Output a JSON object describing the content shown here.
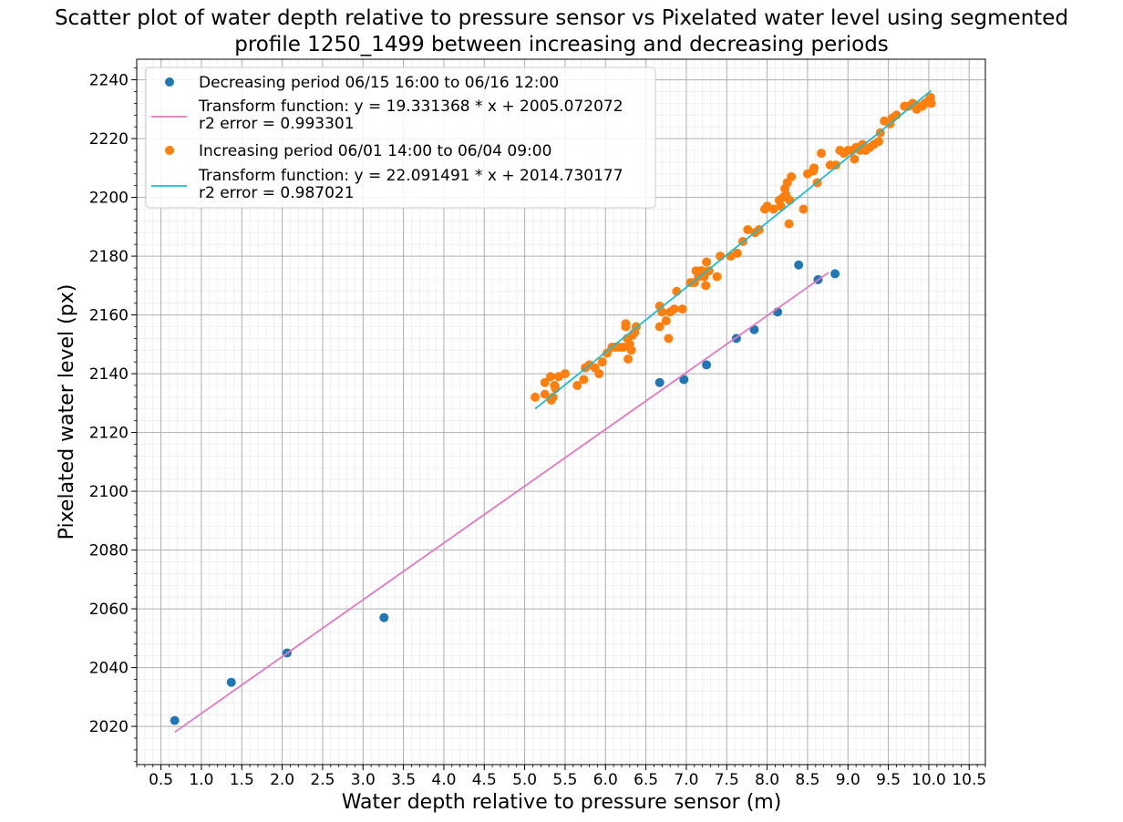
{
  "chart_data": {
    "type": "scatter",
    "title_lines": [
      "Scatter plot of water depth relative to pressure sensor vs Pixelated water level using segmented",
      "profile 1250_1499 between increasing and decreasing periods"
    ],
    "xlabel": "Water depth relative to pressure sensor (m)",
    "ylabel": "Pixelated water level (px)",
    "xlim": [
      0.2,
      10.7
    ],
    "ylim": [
      2007,
      2247
    ],
    "x_ticks": [
      "0.5",
      "1.0",
      "1.5",
      "2.0",
      "2.5",
      "3.0",
      "3.5",
      "4.0",
      "4.5",
      "5.0",
      "5.5",
      "6.0",
      "6.5",
      "7.0",
      "7.5",
      "8.0",
      "8.5",
      "9.0",
      "9.5",
      "10.0",
      "10.5"
    ],
    "y_ticks": [
      "2020",
      "2040",
      "2060",
      "2080",
      "2100",
      "2120",
      "2140",
      "2160",
      "2180",
      "2200",
      "2220",
      "2240"
    ],
    "grid": true,
    "legend_position": "upper-left",
    "series": [
      {
        "name": "Decreasing period 06/15 16:00 to 06/16 12:00",
        "kind": "scatter",
        "color": "#1f77b4",
        "points": [
          [
            0.67,
            2022
          ],
          [
            1.37,
            2035
          ],
          [
            2.06,
            2045
          ],
          [
            3.26,
            2057
          ],
          [
            6.67,
            2137
          ],
          [
            6.97,
            2138
          ],
          [
            7.25,
            2143
          ],
          [
            7.62,
            2152
          ],
          [
            7.84,
            2155
          ],
          [
            8.13,
            2161
          ],
          [
            8.39,
            2177
          ],
          [
            8.63,
            2172
          ],
          [
            8.84,
            2174
          ]
        ]
      },
      {
        "name_lines": [
          "Transform function: y = 19.331368 * x + 2005.072072",
          "r2 error = 0.993301"
        ],
        "kind": "line",
        "color": "#e377c2",
        "x_range": [
          0.67,
          8.76
        ],
        "slope": 19.331368,
        "intercept": 2005.072072
      },
      {
        "name": "Increasing period 06/01 14:00 to 06/04 09:00",
        "kind": "scatter",
        "color": "#ff7f0e",
        "points": [
          [
            5.13,
            2132
          ],
          [
            5.25,
            2137
          ],
          [
            5.25,
            2133
          ],
          [
            5.32,
            2139
          ],
          [
            5.33,
            2131
          ],
          [
            5.35,
            2132
          ],
          [
            5.37,
            2136
          ],
          [
            5.38,
            2135
          ],
          [
            5.42,
            2139
          ],
          [
            5.5,
            2140
          ],
          [
            5.65,
            2136
          ],
          [
            5.73,
            2138
          ],
          [
            5.75,
            2142
          ],
          [
            5.8,
            2143
          ],
          [
            5.87,
            2142
          ],
          [
            5.92,
            2140
          ],
          [
            5.96,
            2144
          ],
          [
            6.02,
            2147
          ],
          [
            6.08,
            2149
          ],
          [
            6.12,
            2149
          ],
          [
            6.17,
            2149
          ],
          [
            6.22,
            2149
          ],
          [
            6.25,
            2157
          ],
          [
            6.25,
            2156
          ],
          [
            6.27,
            2152
          ],
          [
            6.28,
            2145
          ],
          [
            6.3,
            2150
          ],
          [
            6.32,
            2148
          ],
          [
            6.33,
            2153
          ],
          [
            6.36,
            2154
          ],
          [
            6.38,
            2156
          ],
          [
            6.67,
            2156
          ],
          [
            6.67,
            2163
          ],
          [
            6.7,
            2161
          ],
          [
            6.75,
            2158
          ],
          [
            6.78,
            2152
          ],
          [
            6.8,
            2161
          ],
          [
            6.85,
            2162
          ],
          [
            6.88,
            2168
          ],
          [
            6.95,
            2162
          ],
          [
            7.05,
            2171
          ],
          [
            7.1,
            2171
          ],
          [
            7.12,
            2175
          ],
          [
            7.15,
            2173
          ],
          [
            7.18,
            2175
          ],
          [
            7.2,
            2175
          ],
          [
            7.22,
            2173
          ],
          [
            7.24,
            2170
          ],
          [
            7.25,
            2178
          ],
          [
            7.28,
            2175
          ],
          [
            7.38,
            2173
          ],
          [
            7.42,
            2180
          ],
          [
            7.55,
            2180
          ],
          [
            7.63,
            2181
          ],
          [
            7.7,
            2185
          ],
          [
            7.76,
            2189
          ],
          [
            7.85,
            2188
          ],
          [
            7.9,
            2189
          ],
          [
            7.97,
            2196
          ],
          [
            8.0,
            2197
          ],
          [
            8.08,
            2196
          ],
          [
            8.15,
            2199
          ],
          [
            8.17,
            2197
          ],
          [
            8.2,
            2200
          ],
          [
            8.22,
            2203
          ],
          [
            8.23,
            2201
          ],
          [
            8.25,
            2205
          ],
          [
            8.27,
            2191
          ],
          [
            8.28,
            2199
          ],
          [
            8.3,
            2207
          ],
          [
            8.45,
            2196
          ],
          [
            8.5,
            2208
          ],
          [
            8.57,
            2209
          ],
          [
            8.58,
            2210
          ],
          [
            8.62,
            2205
          ],
          [
            8.67,
            2215
          ],
          [
            8.78,
            2211
          ],
          [
            8.85,
            2211
          ],
          [
            8.9,
            2216
          ],
          [
            8.95,
            2215
          ],
          [
            9.0,
            2216
          ],
          [
            9.05,
            2216
          ],
          [
            9.08,
            2213
          ],
          [
            9.1,
            2217
          ],
          [
            9.15,
            2216
          ],
          [
            9.18,
            2218
          ],
          [
            9.22,
            2216
          ],
          [
            9.27,
            2217
          ],
          [
            9.32,
            2218
          ],
          [
            9.38,
            2219
          ],
          [
            9.4,
            2222
          ],
          [
            9.45,
            2226
          ],
          [
            9.52,
            2225
          ],
          [
            9.55,
            2227
          ],
          [
            9.6,
            2228
          ],
          [
            9.7,
            2231
          ],
          [
            9.75,
            2231
          ],
          [
            9.8,
            2232
          ],
          [
            9.85,
            2230
          ],
          [
            9.88,
            2231
          ],
          [
            9.92,
            2231
          ],
          [
            9.95,
            2232
          ],
          [
            10.0,
            2233
          ],
          [
            10.02,
            2234
          ],
          [
            10.03,
            2232
          ]
        ]
      },
      {
        "name_lines": [
          "Transform function: y = 22.091491 * x + 2014.730177",
          "r2 error = 0.987021"
        ],
        "kind": "line",
        "color": "#17becf",
        "x_range": [
          5.13,
          10.03
        ],
        "slope": 22.091491,
        "intercept": 2014.730177
      }
    ]
  }
}
